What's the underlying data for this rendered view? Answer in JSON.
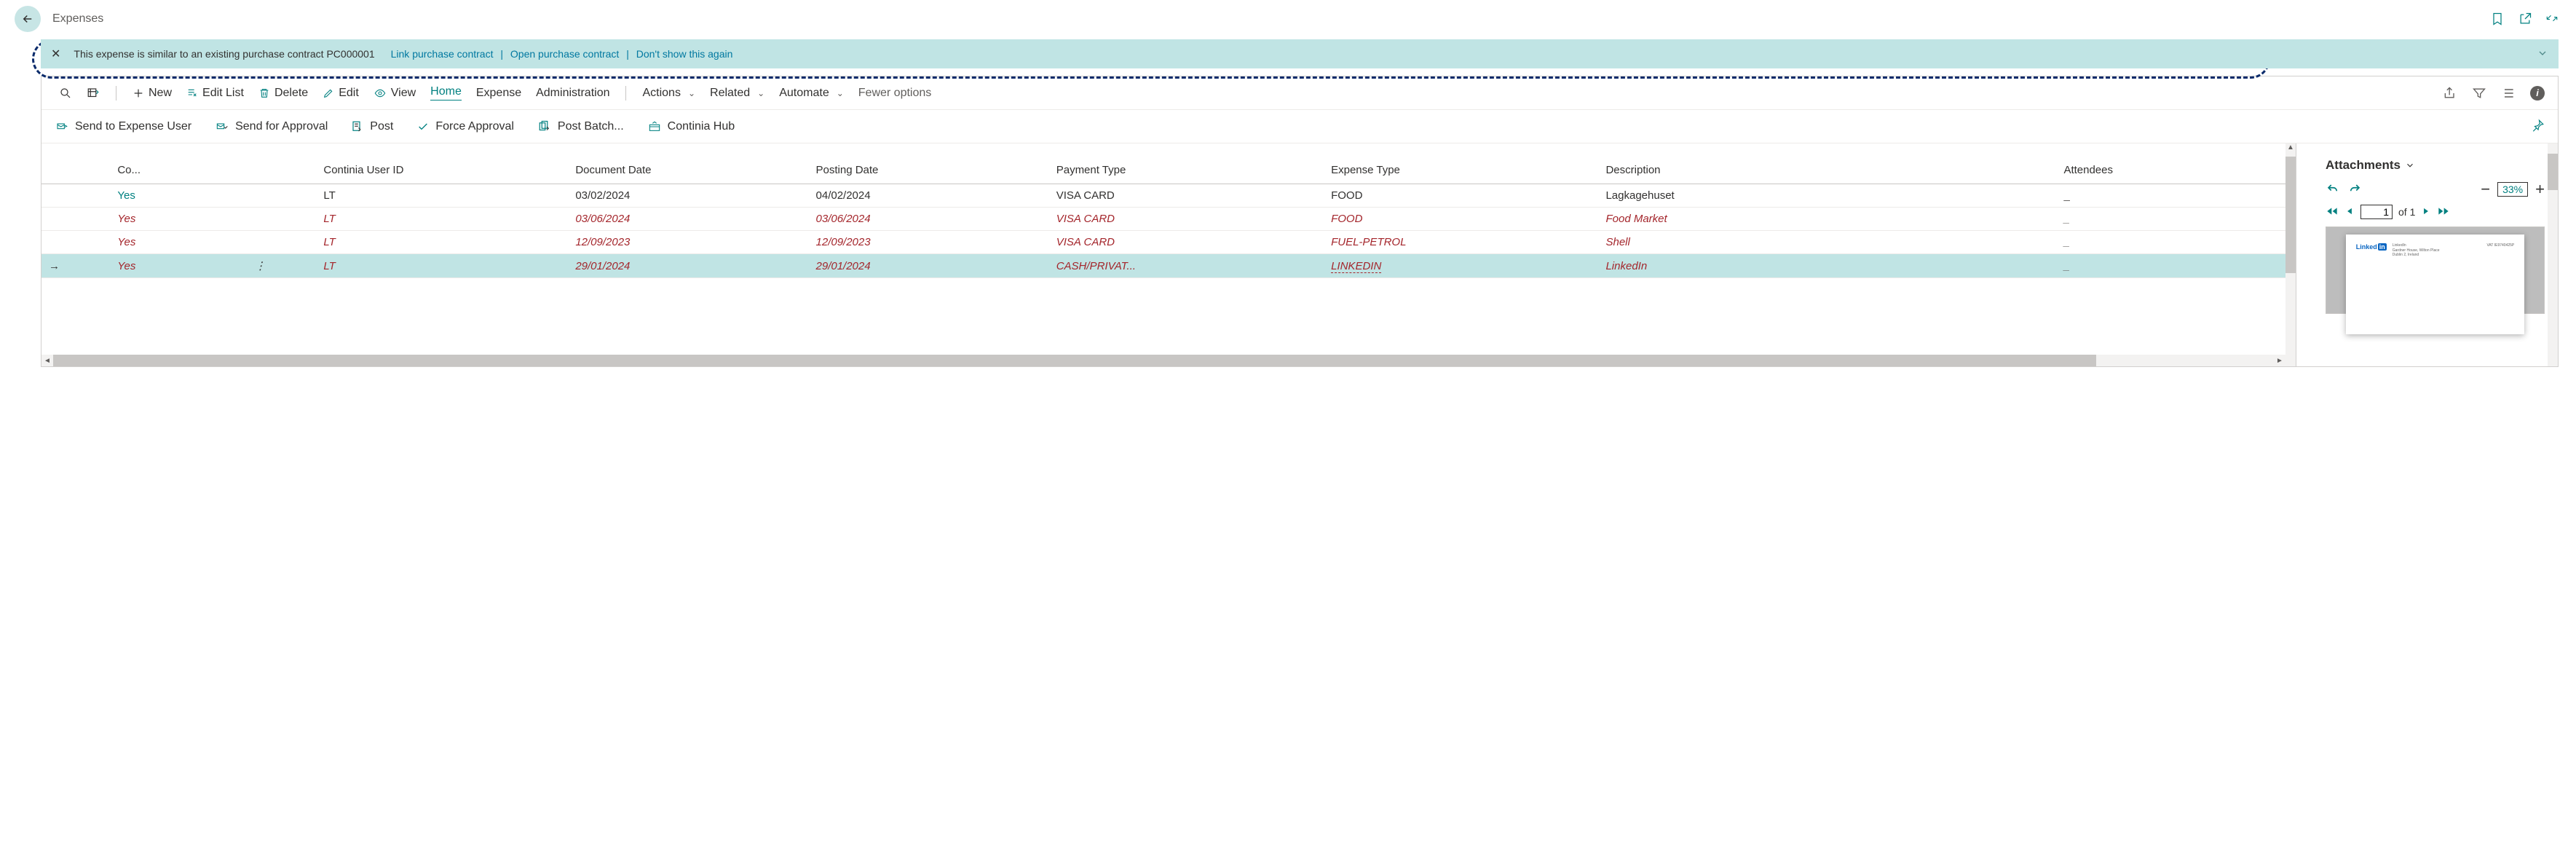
{
  "header": {
    "title": "Expenses"
  },
  "banner": {
    "message": "This expense is similar to an existing purchase contract PC000001",
    "link_contract": "Link purchase contract",
    "open_contract": "Open purchase contract",
    "dont_show": "Don't show this again"
  },
  "ribbon": {
    "new": "New",
    "edit_list": "Edit List",
    "delete": "Delete",
    "edit": "Edit",
    "view": "View",
    "home": "Home",
    "expense": "Expense",
    "administration": "Administration",
    "actions": "Actions",
    "related": "Related",
    "automate": "Automate",
    "fewer_options": "Fewer options"
  },
  "actions": {
    "send_to_user": "Send to Expense User",
    "send_for_approval": "Send for Approval",
    "post": "Post",
    "force_approval": "Force Approval",
    "post_batch": "Post Batch...",
    "continia_hub": "Continia Hub"
  },
  "columns": {
    "co": "Co...",
    "user_id": "Continia User ID",
    "doc_date": "Document Date",
    "posting_date": "Posting Date",
    "payment_type": "Payment Type",
    "expense_type": "Expense Type",
    "description": "Description",
    "attendees": "Attendees"
  },
  "rows": [
    {
      "co": "Yes",
      "user": "LT",
      "doc_date": "03/02/2024",
      "post_date": "04/02/2024",
      "pay": "VISA CARD",
      "etype": "FOOD",
      "desc": "Lagkagehuset",
      "style": "normal"
    },
    {
      "co": "Yes",
      "user": "LT",
      "doc_date": "03/06/2024",
      "post_date": "03/06/2024",
      "pay": "VISA CARD",
      "etype": "FOOD",
      "desc": "Food Market",
      "style": "red"
    },
    {
      "co": "Yes",
      "user": "LT",
      "doc_date": "12/09/2023",
      "post_date": "12/09/2023",
      "pay": "VISA CARD",
      "etype": "FUEL-PETROL",
      "desc": "Shell",
      "style": "red"
    },
    {
      "co": "Yes",
      "user": "LT",
      "doc_date": "29/01/2024",
      "post_date": "29/01/2024",
      "pay": "CASH/PRIVAT...",
      "etype": "LINKEDIN",
      "desc": "LinkedIn",
      "style": "red selected"
    }
  ],
  "side": {
    "attachments": "Attachments",
    "zoom": "33%",
    "page": "1",
    "of": "of 1",
    "logo_a": "Linked",
    "logo_b": "in"
  },
  "colors": {
    "teal": "#008080",
    "banner_bg": "#c0e4e4",
    "red": "#a4262c",
    "dash": "#0b2b6b"
  }
}
